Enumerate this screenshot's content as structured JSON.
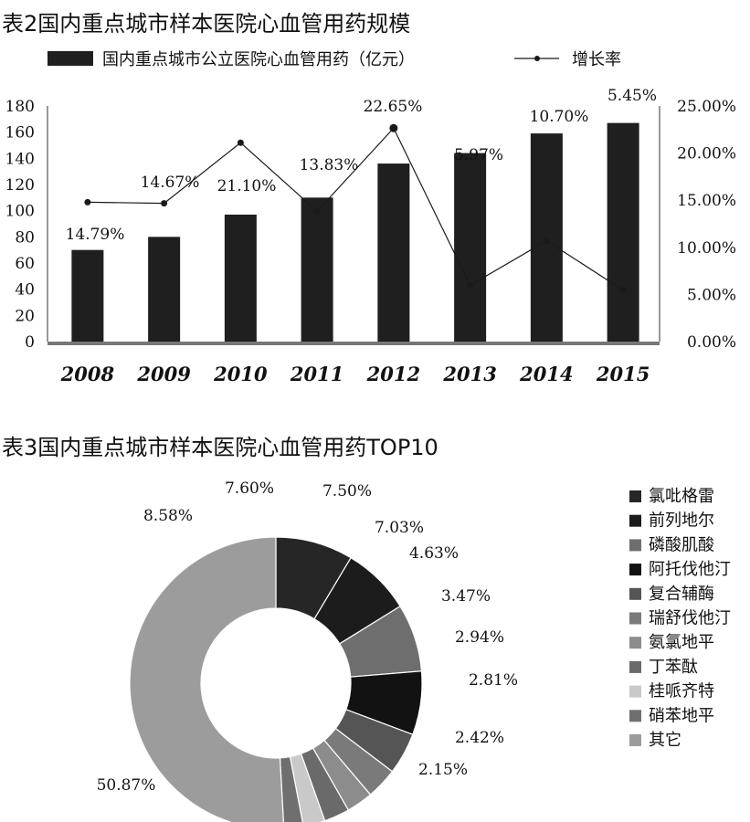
{
  "charts": {
    "bar_chart_title": "表2国内重点城市样本医院心血管用药规模",
    "donut_chart_title": "表3国内重点城市样本医院心血管用药TOP10"
  },
  "colors": {
    "bar": "#1f1f1f",
    "line": "#1a1a1a",
    "donut_slices": [
      "#262626",
      "#1c1c1c",
      "#6e6e6e",
      "#121212",
      "#555555",
      "#7a7a7a",
      "#8c8c8c",
      "#6a6a6a",
      "#c9c9c9",
      "#6f6f6f",
      "#9c9c9c"
    ]
  },
  "chart_data": [
    {
      "type": "bar",
      "title": "表2国内重点城市样本医院心血管用药规模",
      "categories": [
        "2008",
        "2009",
        "2010",
        "2011",
        "2012",
        "2013",
        "2014",
        "2015"
      ],
      "series": [
        {
          "name": "国内重点城市公立医院心血管用药（亿元）",
          "type": "bar",
          "axis": "left",
          "values": [
            70,
            80,
            97,
            110,
            136,
            144,
            159,
            167
          ]
        },
        {
          "name": "增长率",
          "type": "line",
          "axis": "right",
          "values": [
            14.79,
            14.67,
            21.1,
            13.83,
            22.65,
            5.97,
            10.7,
            5.45
          ],
          "data_labels": [
            "14.79%",
            "14.67%",
            "21.10%",
            "13.83%",
            "22.65%",
            "5.97%",
            "10.70%",
            "5.45%"
          ]
        }
      ],
      "ylim": [
        0,
        180
      ],
      "yticks": [
        "0",
        "20",
        "40",
        "60",
        "80",
        "100",
        "120",
        "140",
        "160",
        "180"
      ],
      "y2lim": [
        0,
        25
      ],
      "y2ticks": [
        "0.00%",
        "5.00%",
        "10.00%",
        "15.00%",
        "20.00%",
        "25.00%"
      ],
      "legend": "top",
      "grid": false
    },
    {
      "type": "pie",
      "subtype": "donut",
      "title": "表3国内重点城市样本医院心血管用药TOP10",
      "labels": [
        "氯吡格雷",
        "前列地尔",
        "磷酸肌酸",
        "阿托伐他汀",
        "复合辅酶",
        "瑞舒伐他汀",
        "氨氯地平",
        "丁苯酞",
        "桂哌齐特",
        "硝苯地平",
        "其它"
      ],
      "values": [
        8.58,
        7.6,
        7.5,
        7.03,
        4.63,
        3.47,
        2.94,
        2.81,
        2.42,
        2.15,
        50.87
      ],
      "value_labels": [
        "8.58%",
        "7.60%",
        "7.50%",
        "7.03%",
        "4.63%",
        "3.47%",
        "2.94%",
        "2.81%",
        "2.42%",
        "2.15%",
        "50.87%"
      ],
      "legend": "right"
    }
  ]
}
